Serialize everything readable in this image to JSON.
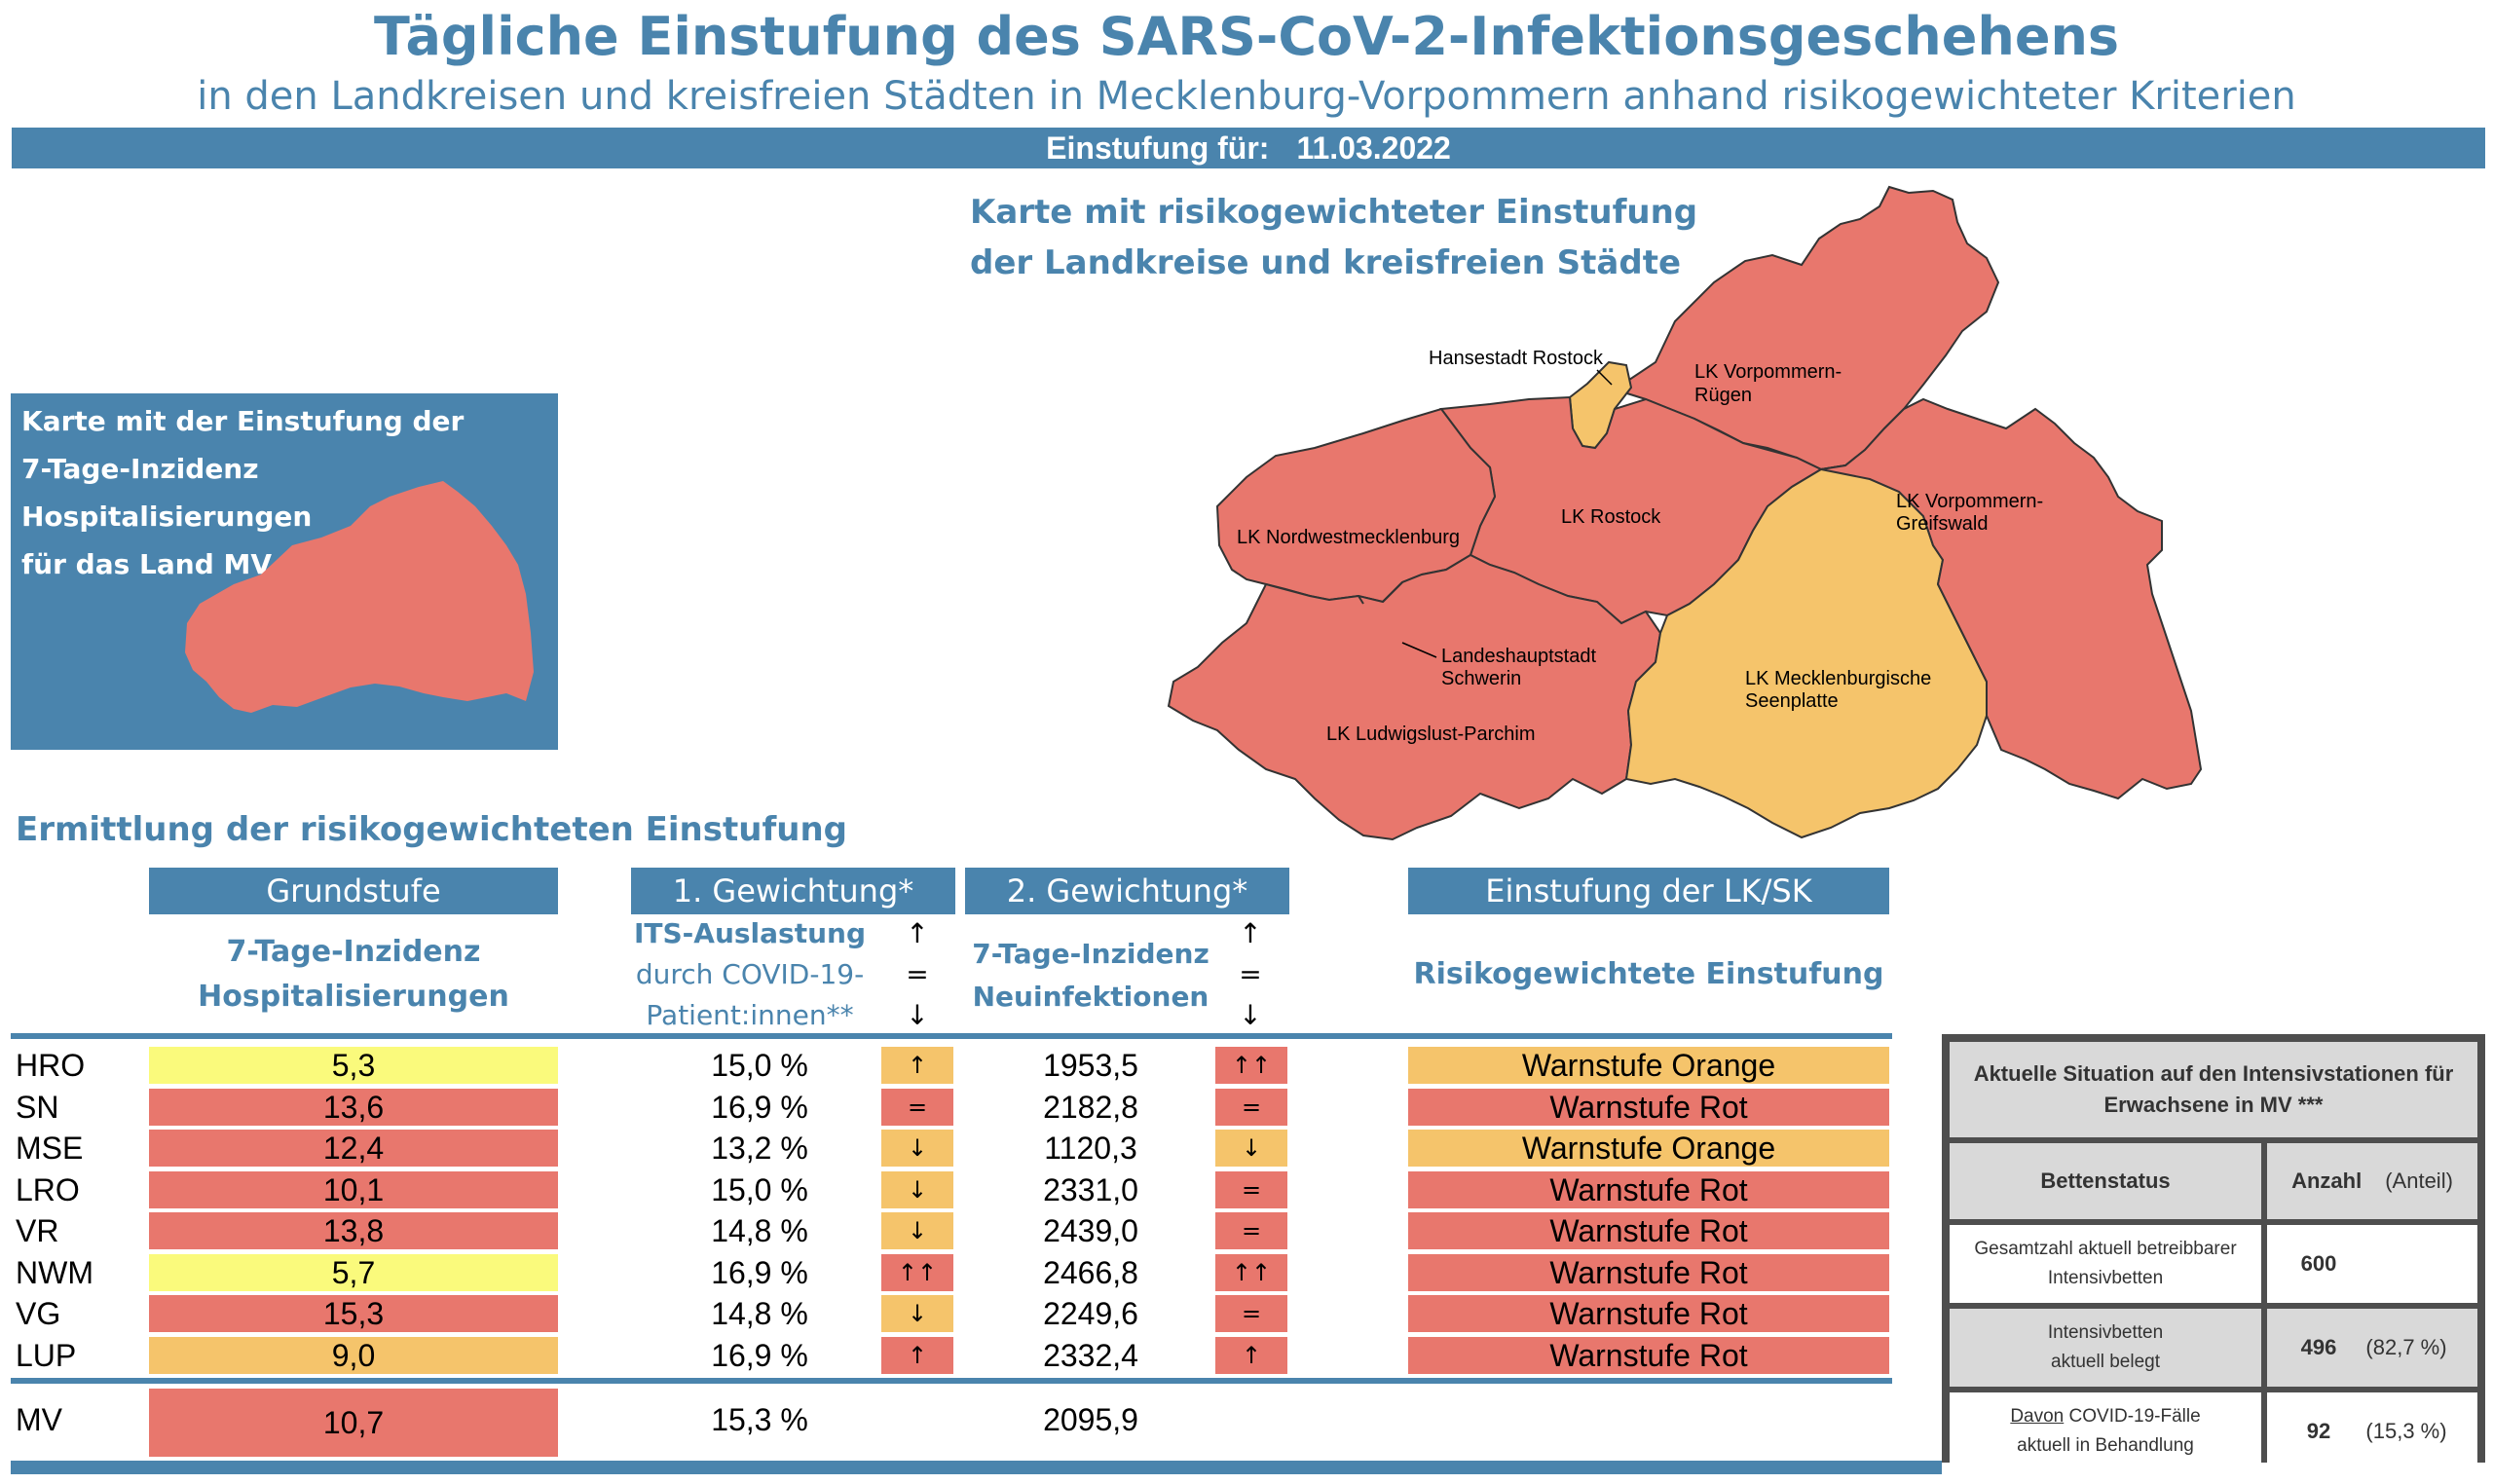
{
  "header": {
    "title": "Tägliche Einstufung des SARS-CoV-2-Infektionsgeschehens",
    "subtitle": "in den Landkreisen und kreisfreien Städten in Mecklenburg-Vorpommern anhand risikogewichteter Kriterien",
    "date_label": "Einstufung für:",
    "date_value": "11.03.2022"
  },
  "map": {
    "title_line1": "Karte mit risikogewichteter Einstufung",
    "title_line2": "der Landkreise und kreisfreien Städte",
    "labels": {
      "hro": "Hansestadt Rostock",
      "vr1": "LK Vorpommern-",
      "vr2": "Rügen",
      "lro": "LK Rostock",
      "vg1": "LK Vorpommern-",
      "vg2": "Greifswald",
      "nwm": "LK Nordwestmecklenburg",
      "sn1": "Landeshauptstadt",
      "sn2": "Schwerin",
      "mse1": "LK Mecklenburgische",
      "mse2": "Seenplatte",
      "lup": "LK Ludwigslust-Parchim"
    },
    "colors": {
      "rot": "#e8776d",
      "orange": "#f5c46b",
      "gelb": "#fafa7c",
      "blue": "#4a84ad"
    }
  },
  "hosp_map": {
    "title_line1": "Karte mit der Einstufung der",
    "title_line2": "7-Tage-Inzidenz Hospitalisierungen",
    "title_line3": "für das Land MV"
  },
  "table": {
    "section_title": "Ermittlung der risikogewichteten Einstufung",
    "headers": {
      "grundstufe": "Grundstufe",
      "g1": "1. Gewichtung*",
      "g2": "2. Gewichtung*",
      "einstufung": "Einstufung der LK/SK"
    },
    "subheaders": {
      "grund1": "7-Tage-Inzidenz",
      "grund2": "Hospitalisierungen",
      "its1": "ITS-Auslastung",
      "its2": "durch COVID-19-",
      "its3": "Patient:innen**",
      "inz1": "7-Tage-Inzidenz",
      "inz2": "Neuinfektionen",
      "einst": "Risikogewichtete Einstufung",
      "arrow_up": "↑",
      "arrow_eq": "=",
      "arrow_down": "↓"
    },
    "rows": [
      {
        "id": "HRO",
        "hosp": "5,3",
        "hosp_level": "y",
        "its": "15,0 %",
        "its_trend": "↑",
        "its_trend_level": "o",
        "inz": "1953,5",
        "inz_trend": "↑↑",
        "inz_trend_level": "r",
        "stage": "Warnstufe Orange",
        "stage_level": "o"
      },
      {
        "id": "SN",
        "hosp": "13,6",
        "hosp_level": "r",
        "its": "16,9 %",
        "its_trend": "=",
        "its_trend_level": "r",
        "inz": "2182,8",
        "inz_trend": "=",
        "inz_trend_level": "r",
        "stage": "Warnstufe Rot",
        "stage_level": "r"
      },
      {
        "id": "MSE",
        "hosp": "12,4",
        "hosp_level": "r",
        "its": "13,2 %",
        "its_trend": "↓",
        "its_trend_level": "o",
        "inz": "1120,3",
        "inz_trend": "↓",
        "inz_trend_level": "o",
        "stage": "Warnstufe Orange",
        "stage_level": "o"
      },
      {
        "id": "LRO",
        "hosp": "10,1",
        "hosp_level": "r",
        "its": "15,0 %",
        "its_trend": "↓",
        "its_trend_level": "o",
        "inz": "2331,0",
        "inz_trend": "=",
        "inz_trend_level": "r",
        "stage": "Warnstufe Rot",
        "stage_level": "r"
      },
      {
        "id": "VR",
        "hosp": "13,8",
        "hosp_level": "r",
        "its": "14,8 %",
        "its_trend": "↓",
        "its_trend_level": "o",
        "inz": "2439,0",
        "inz_trend": "=",
        "inz_trend_level": "r",
        "stage": "Warnstufe Rot",
        "stage_level": "r"
      },
      {
        "id": "NWM",
        "hosp": "5,7",
        "hosp_level": "y",
        "its": "16,9 %",
        "its_trend": "↑↑",
        "its_trend_level": "r",
        "inz": "2466,8",
        "inz_trend": "↑↑",
        "inz_trend_level": "r",
        "stage": "Warnstufe Rot",
        "stage_level": "r"
      },
      {
        "id": "VG",
        "hosp": "15,3",
        "hosp_level": "r",
        "its": "14,8 %",
        "its_trend": "↓",
        "its_trend_level": "o",
        "inz": "2249,6",
        "inz_trend": "=",
        "inz_trend_level": "r",
        "stage": "Warnstufe Rot",
        "stage_level": "r"
      },
      {
        "id": "LUP",
        "hosp": "9,0",
        "hosp_level": "o",
        "its": "16,9 %",
        "its_trend": "↑",
        "its_trend_level": "r",
        "inz": "2332,4",
        "inz_trend": "↑",
        "inz_trend_level": "r",
        "stage": "Warnstufe Rot",
        "stage_level": "r"
      }
    ],
    "total": {
      "id": "MV",
      "hosp": "10,7",
      "its": "15,3 %",
      "inz": "2095,9"
    }
  },
  "icu": {
    "title_line1": "Aktuelle Situation auf den Intensivstationen für",
    "title_line2": "Erwachsene in MV ***",
    "col_status": "Bettenstatus",
    "col_anzahl": "Anzahl",
    "col_anteil": "(Anteil)",
    "rows": [
      {
        "label1": "Gesamtzahl aktuell betreibbarer",
        "label2": "Intensivbetten",
        "prefix": "",
        "count": "600",
        "share": ""
      },
      {
        "label1": "Intensivbetten",
        "label2": "aktuell belegt",
        "prefix": "",
        "count": "496",
        "share": "(82,7 %)"
      },
      {
        "label1": " COVID-19-Fälle",
        "label2": "aktuell in Behandlung",
        "prefix": "Davon",
        "count": "92",
        "share": "(15,3 %)"
      }
    ]
  }
}
